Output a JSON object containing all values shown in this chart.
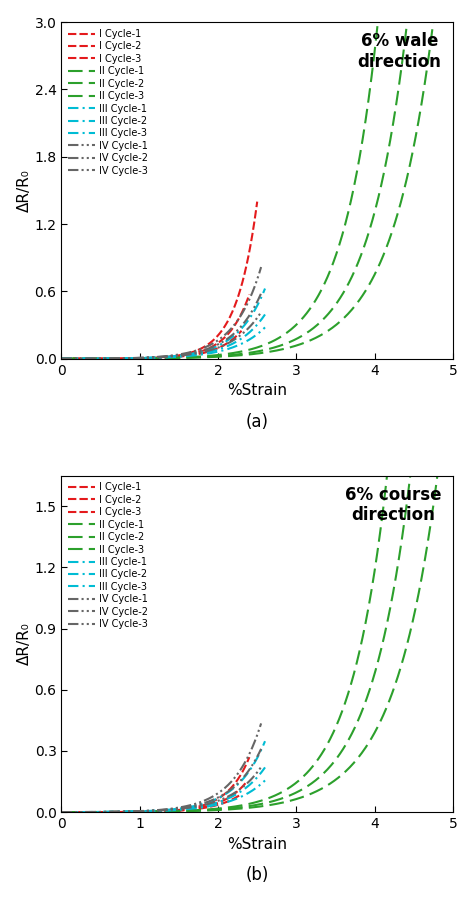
{
  "panel_a": {
    "title": "6% wale\ndirection",
    "ylabel": "ΔR/R₀",
    "xlabel": "%Strain",
    "label": "(a)",
    "ylim": [
      0,
      3.0
    ],
    "yticks": [
      0.0,
      0.6,
      1.2,
      1.8,
      2.4,
      3.0
    ],
    "xlim": [
      0,
      5
    ],
    "xticks": [
      0,
      1,
      2,
      3,
      4,
      5
    ],
    "series": [
      {
        "label": "I Cycle-1",
        "color": "#e41a1c",
        "ls_type": "dash_short",
        "x_start": 0.7,
        "x_end": 2.5,
        "c": 0.0015,
        "k": 3.8
      },
      {
        "label": "I Cycle-2",
        "color": "#e41a1c",
        "ls_type": "dash_short",
        "x_start": 0.7,
        "x_end": 2.4,
        "c": 0.0015,
        "k": 3.5
      },
      {
        "label": "I Cycle-3",
        "color": "#e41a1c",
        "ls_type": "dash_short",
        "x_start": 0.7,
        "x_end": 2.3,
        "c": 0.0015,
        "k": 3.2
      },
      {
        "label": "II Cycle-1",
        "color": "#2ca02c",
        "ls_type": "dash_long",
        "x_start": 0.3,
        "x_end": 5.0,
        "c": 0.0008,
        "k": 2.2
      },
      {
        "label": "II Cycle-2",
        "color": "#2ca02c",
        "ls_type": "dash_long",
        "x_start": 0.3,
        "x_end": 5.0,
        "c": 0.0008,
        "k": 2.0
      },
      {
        "label": "II Cycle-3",
        "color": "#2ca02c",
        "ls_type": "dash_long",
        "x_start": 0.3,
        "x_end": 5.0,
        "c": 0.0008,
        "k": 1.85
      },
      {
        "label": "III Cycle-1",
        "color": "#00bcd4",
        "ls_type": "dashdot",
        "x_start": 0.3,
        "x_end": 2.6,
        "c": 0.001,
        "k": 2.8
      },
      {
        "label": "III Cycle-2",
        "color": "#00bcd4",
        "ls_type": "dashdot",
        "x_start": 0.3,
        "x_end": 2.6,
        "c": 0.001,
        "k": 2.6
      },
      {
        "label": "III Cycle-3",
        "color": "#00bcd4",
        "ls_type": "dashdot",
        "x_start": 0.3,
        "x_end": 2.6,
        "c": 0.001,
        "k": 2.45
      },
      {
        "label": "IV Cycle-1",
        "color": "#666666",
        "ls_type": "dashdotdot",
        "x_start": 0.3,
        "x_end": 2.55,
        "c": 0.0012,
        "k": 2.9
      },
      {
        "label": "IV Cycle-2",
        "color": "#666666",
        "ls_type": "dashdotdot",
        "x_start": 0.3,
        "x_end": 2.55,
        "c": 0.0012,
        "k": 2.75
      },
      {
        "label": "IV Cycle-3",
        "color": "#666666",
        "ls_type": "dashdotdot",
        "x_start": 0.3,
        "x_end": 2.55,
        "c": 0.0012,
        "k": 2.6
      }
    ]
  },
  "panel_b": {
    "title": "6% course\ndirection",
    "ylabel": "ΔR/R₀",
    "xlabel": "%Strain",
    "label": "(b)",
    "ylim": [
      0,
      1.65
    ],
    "yticks": [
      0.0,
      0.3,
      0.6,
      0.9,
      1.2,
      1.5
    ],
    "xlim": [
      0,
      5
    ],
    "xticks": [
      0,
      1,
      2,
      3,
      4,
      5
    ],
    "series": [
      {
        "label": "I Cycle-1",
        "color": "#e41a1c",
        "ls_type": "dash_short",
        "x_start": 0.8,
        "x_end": 2.4,
        "c": 0.001,
        "k": 3.5
      },
      {
        "label": "I Cycle-2",
        "color": "#e41a1c",
        "ls_type": "dash_short",
        "x_start": 0.8,
        "x_end": 2.35,
        "c": 0.001,
        "k": 3.2
      },
      {
        "label": "I Cycle-3",
        "color": "#e41a1c",
        "ls_type": "dash_short",
        "x_start": 0.8,
        "x_end": 2.3,
        "c": 0.001,
        "k": 3.0
      },
      {
        "label": "II Cycle-1",
        "color": "#2ca02c",
        "ls_type": "dash_long",
        "x_start": 0.3,
        "x_end": 5.0,
        "c": 0.0005,
        "k": 2.1
      },
      {
        "label": "II Cycle-2",
        "color": "#2ca02c",
        "ls_type": "dash_long",
        "x_start": 0.3,
        "x_end": 5.0,
        "c": 0.0005,
        "k": 1.95
      },
      {
        "label": "II Cycle-3",
        "color": "#2ca02c",
        "ls_type": "dash_long",
        "x_start": 0.3,
        "x_end": 5.0,
        "c": 0.0005,
        "k": 1.8
      },
      {
        "label": "III Cycle-1",
        "color": "#00bcd4",
        "ls_type": "dashdot",
        "x_start": 0.3,
        "x_end": 2.6,
        "c": 0.0007,
        "k": 2.7
      },
      {
        "label": "III Cycle-2",
        "color": "#00bcd4",
        "ls_type": "dashdot",
        "x_start": 0.3,
        "x_end": 2.6,
        "c": 0.0007,
        "k": 2.5
      },
      {
        "label": "III Cycle-3",
        "color": "#00bcd4",
        "ls_type": "dashdot",
        "x_start": 0.3,
        "x_end": 2.6,
        "c": 0.0007,
        "k": 2.35
      },
      {
        "label": "IV Cycle-1",
        "color": "#666666",
        "ls_type": "dashdotdot",
        "x_start": 0.3,
        "x_end": 2.55,
        "c": 0.0008,
        "k": 2.8
      },
      {
        "label": "IV Cycle-2",
        "color": "#666666",
        "ls_type": "dashdotdot",
        "x_start": 0.3,
        "x_end": 2.55,
        "c": 0.0008,
        "k": 2.65
      },
      {
        "label": "IV Cycle-3",
        "color": "#666666",
        "ls_type": "dashdotdot",
        "x_start": 0.3,
        "x_end": 2.55,
        "c": 0.0008,
        "k": 2.5
      }
    ]
  }
}
